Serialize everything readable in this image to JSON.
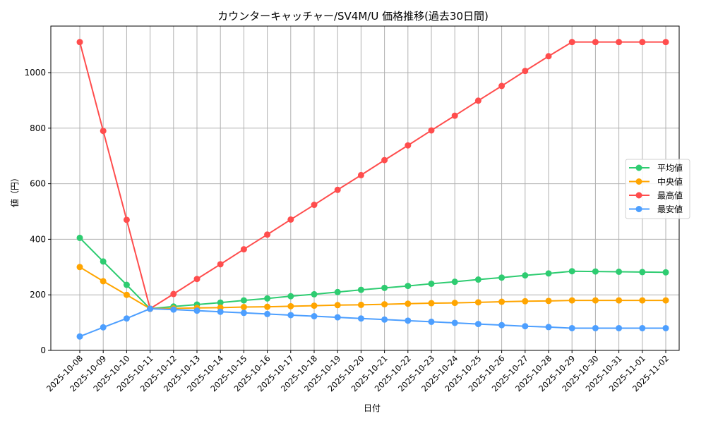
{
  "chart_data": {
    "type": "line",
    "title": "カウンターキャッチャー/SV4M/U 価格推移(過去30日間)",
    "xlabel": "日付",
    "ylabel": "値（円）",
    "ylim": [
      0,
      1160
    ],
    "yticks": [
      0,
      200,
      400,
      600,
      800,
      1000
    ],
    "grid": true,
    "legend_position": "center right",
    "categories": [
      "2025-10-08",
      "2025-10-09",
      "2025-10-10",
      "2025-10-11",
      "2025-10-12",
      "2025-10-13",
      "2025-10-14",
      "2025-10-15",
      "2025-10-16",
      "2025-10-17",
      "2025-10-18",
      "2025-10-19",
      "2025-10-20",
      "2025-10-21",
      "2025-10-22",
      "2025-10-23",
      "2025-10-24",
      "2025-10-25",
      "2025-10-26",
      "2025-10-27",
      "2025-10-28",
      "2025-10-29",
      "2025-10-30",
      "2025-10-31",
      "2025-11-01",
      "2025-11-02"
    ],
    "series": [
      {
        "name": "平均値",
        "color": "#2ecc71",
        "values": [
          405,
          320,
          236,
          150,
          158,
          165,
          172,
          180,
          187,
          195,
          202,
          210,
          218,
          225,
          232,
          240,
          247,
          255,
          262,
          270,
          277,
          285,
          284,
          283,
          282,
          281
        ]
      },
      {
        "name": "中央値",
        "color": "#ffa500",
        "values": [
          300,
          249,
          200,
          150,
          151,
          153,
          154,
          156,
          157,
          159,
          161,
          163,
          164,
          166,
          168,
          170,
          171,
          173,
          175,
          177,
          178,
          180,
          180,
          180,
          180,
          180
        ]
      },
      {
        "name": "最高値",
        "color": "#ff4d4d",
        "values": [
          1110,
          790,
          470,
          150,
          203,
          257,
          310,
          364,
          417,
          471,
          524,
          578,
          631,
          685,
          738,
          792,
          845,
          899,
          952,
          1006,
          1059,
          1110,
          1110,
          1110,
          1110,
          1110
        ]
      },
      {
        "name": "最安値",
        "color": "#4d9fff",
        "values": [
          50,
          83,
          115,
          150,
          147,
          143,
          139,
          135,
          131,
          127,
          123,
          119,
          115,
          111,
          107,
          103,
          99,
          95,
          91,
          87,
          84,
          80,
          80,
          80,
          80,
          80
        ]
      }
    ]
  }
}
